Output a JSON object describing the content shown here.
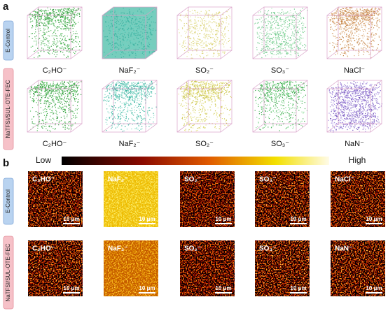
{
  "panel_a": {
    "label": "a",
    "rows": [
      {
        "label": "E-Control",
        "items": [
          "C₂HO⁻",
          "NaF₂⁻",
          "SO₂⁻",
          "SO₃⁻",
          "NaCl⁻"
        ]
      },
      {
        "label": "NaTFSI/SUL-OTE-FEC",
        "items": [
          "C₂HO⁻",
          "NaF₂⁻",
          "SO₂⁻",
          "SO₃⁻",
          "NaN⁻"
        ]
      }
    ]
  },
  "colorbar": {
    "low": "Low",
    "high": "High"
  },
  "panel_b": {
    "label": "b",
    "scale_bar": "10 μm",
    "rows": [
      {
        "label": "E-Control",
        "items": [
          "C₂HO⁻",
          "NaF₂⁻",
          "SO₂⁻",
          "SO₃⁻",
          "NaCl⁻"
        ]
      },
      {
        "label": "NaTFSI/SUL-OTE-FEC",
        "items": [
          "C₂HO⁻",
          "NaF₂⁻",
          "SO₂⁻",
          "SO₃⁻",
          "NaN⁻"
        ]
      }
    ]
  }
}
